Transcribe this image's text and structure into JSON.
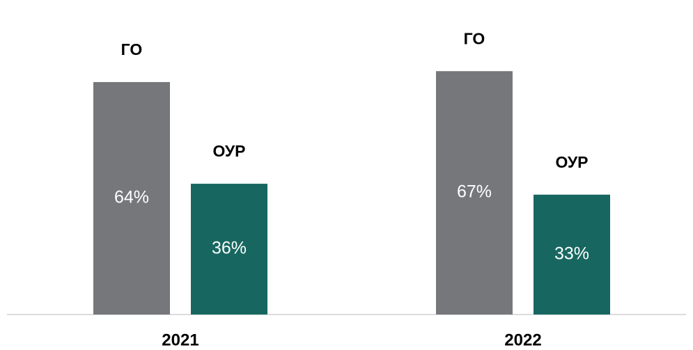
{
  "chart_data": {
    "type": "bar",
    "categories": [
      "2021",
      "2022"
    ],
    "series": [
      {
        "name": "ГО",
        "color": "#75777a",
        "values": [
          64,
          67
        ],
        "value_labels": [
          "64%",
          "67%"
        ]
      },
      {
        "name": "ОУР",
        "color": "#176760",
        "values": [
          36,
          33
        ],
        "value_labels": [
          "36%",
          "33%"
        ]
      }
    ]
  }
}
